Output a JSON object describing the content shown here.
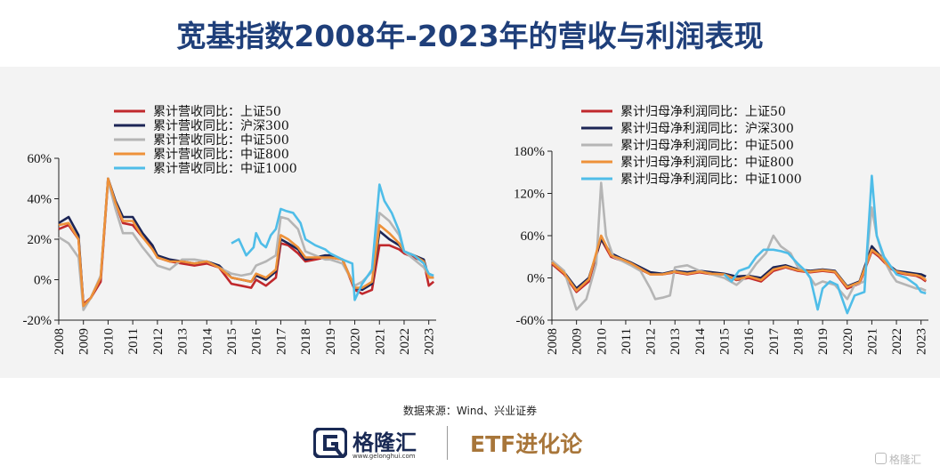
{
  "title": "宽基指数2008年-2023年的营收与利润表现",
  "source": "数据来源：Wind、兴业证券",
  "brand": {
    "name": "格隆汇",
    "url": "www.gelonghui.com",
    "subtitle": "ETF进化论",
    "watermark": "格隆汇"
  },
  "chart_data": [
    {
      "type": "line",
      "x_ticks": [
        "2008",
        "2009",
        "2010",
        "2011",
        "2012",
        "2013",
        "2014",
        "2015",
        "2016",
        "2017",
        "2018",
        "2019",
        "2020",
        "2021",
        "2022",
        "2023"
      ],
      "y_ticks": [
        "60%",
        "40%",
        "20%",
        "0%",
        "-20%"
      ],
      "ylim": [
        -20,
        60
      ],
      "xlim": [
        2008,
        2023.3
      ],
      "series": [
        {
          "name": "累计营收同比：上证50",
          "color": "#c0282c",
          "x": [
            2008,
            2008.4,
            2008.8,
            2009,
            2009.3,
            2009.7,
            2010,
            2010.3,
            2010.6,
            2011,
            2011.4,
            2011.8,
            2012,
            2012.5,
            2013,
            2013.5,
            2014,
            2014.5,
            2015,
            2015.4,
            2015.8,
            2016,
            2016.4,
            2016.8,
            2017,
            2017.3,
            2017.7,
            2018,
            2018.4,
            2018.8,
            2019,
            2019.5,
            2020,
            2020.3,
            2020.7,
            2021,
            2021.4,
            2021.8,
            2022,
            2022.4,
            2022.8,
            2023,
            2023.2
          ],
          "y": [
            25,
            27,
            20,
            -12,
            -9,
            -1,
            49,
            38,
            28,
            27,
            21,
            16,
            11,
            9,
            8,
            7,
            8,
            6,
            -2,
            -3,
            -4,
            0,
            -3,
            1,
            18,
            17,
            13,
            9,
            10,
            11,
            11,
            10,
            -5,
            -7,
            -5,
            17,
            17,
            15,
            13,
            11,
            9,
            -3,
            -1
          ]
        },
        {
          "name": "累计营收同比：沪深300",
          "color": "#1c2556",
          "x": [
            2008,
            2008.4,
            2008.8,
            2009,
            2009.3,
            2009.7,
            2010,
            2010.3,
            2010.6,
            2011,
            2011.4,
            2011.8,
            2012,
            2012.5,
            2013,
            2013.5,
            2014,
            2014.5,
            2015,
            2015.4,
            2015.8,
            2016,
            2016.4,
            2016.8,
            2017,
            2017.3,
            2017.7,
            2018,
            2018.4,
            2018.8,
            2019,
            2019.5,
            2020,
            2020.3,
            2020.7,
            2021,
            2021.4,
            2021.8,
            2022,
            2022.4,
            2022.8,
            2023,
            2023.2
          ],
          "y": [
            28,
            31,
            22,
            -13,
            -9,
            1,
            50,
            39,
            31,
            31,
            23,
            17,
            12,
            10,
            9,
            8,
            9,
            7,
            1,
            0,
            -1,
            2,
            0,
            4,
            20,
            18,
            15,
            10,
            11,
            12,
            12,
            10,
            -4,
            -5,
            -2,
            24,
            20,
            17,
            14,
            12,
            10,
            1,
            1
          ]
        },
        {
          "name": "累计营收同比：中证500",
          "color": "#b5b5b5",
          "x": [
            2008,
            2008.4,
            2008.8,
            2009,
            2009.3,
            2009.7,
            2010,
            2010.3,
            2010.6,
            2011,
            2011.4,
            2011.8,
            2012,
            2012.5,
            2013,
            2013.5,
            2014,
            2014.5,
            2015,
            2015.4,
            2015.8,
            2016,
            2016.4,
            2016.8,
            2017,
            2017.3,
            2017.7,
            2018,
            2018.4,
            2018.8,
            2019,
            2019.5,
            2020,
            2020.3,
            2020.7,
            2021,
            2021.4,
            2021.8,
            2022,
            2022.4,
            2022.8,
            2023,
            2023.2
          ],
          "y": [
            21,
            18,
            11,
            -15,
            -9,
            2,
            49,
            35,
            23,
            23,
            16,
            10,
            7,
            5,
            10,
            10,
            9,
            6,
            3,
            2,
            3,
            7,
            9,
            12,
            31,
            30,
            25,
            14,
            12,
            10,
            10,
            8,
            -3,
            -1,
            4,
            33,
            29,
            22,
            14,
            10,
            6,
            2,
            1
          ]
        },
        {
          "name": "累计营收同比：中证800",
          "color": "#ee9139",
          "x": [
            2008,
            2008.4,
            2008.8,
            2009,
            2009.3,
            2009.7,
            2010,
            2010.3,
            2010.6,
            2011,
            2011.4,
            2011.8,
            2012,
            2012.5,
            2013,
            2013.5,
            2014,
            2014.5,
            2015,
            2015.4,
            2015.8,
            2016,
            2016.4,
            2016.8,
            2017,
            2017.3,
            2017.7,
            2018,
            2018.4,
            2018.8,
            2019,
            2019.5,
            2020,
            2020.3,
            2020.7,
            2021,
            2021.4,
            2021.8,
            2022,
            2022.4,
            2022.8,
            2023,
            2023.2
          ],
          "y": [
            27,
            28,
            20,
            -13,
            -9,
            1,
            50,
            38,
            29,
            29,
            21,
            15,
            11,
            9,
            9,
            8,
            9,
            6,
            1,
            0,
            -1,
            3,
            1,
            5,
            22,
            20,
            16,
            11,
            11,
            11,
            11,
            10,
            -4,
            -4,
            -1,
            27,
            23,
            18,
            14,
            12,
            9,
            1,
            1
          ]
        },
        {
          "name": "累计营收同比：中证1000",
          "color": "#4fbde8",
          "x": [
            2015,
            2015.3,
            2015.6,
            2015.9,
            2016,
            2016.2,
            2016.4,
            2016.6,
            2016.8,
            2017,
            2017.2,
            2017.5,
            2017.8,
            2018,
            2018.4,
            2018.8,
            2019,
            2019.5,
            2019.9,
            2020,
            2020.3,
            2020.7,
            2021,
            2021.2,
            2021.5,
            2021.8,
            2022,
            2022.4,
            2022.8,
            2023,
            2023.2
          ],
          "y": [
            18,
            20,
            12,
            16,
            23,
            18,
            16,
            22,
            25,
            35,
            34,
            33,
            28,
            20,
            17,
            15,
            13,
            10,
            8,
            -10,
            -2,
            5,
            47,
            39,
            33,
            24,
            14,
            12,
            8,
            3,
            2
          ]
        }
      ]
    },
    {
      "type": "line",
      "x_ticks": [
        "2008",
        "2009",
        "2010",
        "2011",
        "2012",
        "2013",
        "2014",
        "2015",
        "2016",
        "2017",
        "2018",
        "2019",
        "2020",
        "2021",
        "2022",
        "2023"
      ],
      "y_ticks": [
        "180%",
        "120%",
        "60%",
        "0%",
        "-60%"
      ],
      "ylim": [
        -60,
        180
      ],
      "xlim": [
        2008,
        2023.3
      ],
      "series": [
        {
          "name": "累计归母净利润同比：上证50",
          "color": "#c0282c",
          "x": [
            2008,
            2008.5,
            2009,
            2009.5,
            2010,
            2010.4,
            2010.8,
            2011.2,
            2011.6,
            2012,
            2012.5,
            2013,
            2013.5,
            2014,
            2014.5,
            2015,
            2015.5,
            2016,
            2016.5,
            2017,
            2017.5,
            2018,
            2018.5,
            2019,
            2019.5,
            2020,
            2020.5,
            2021,
            2021.3,
            2021.7,
            2022,
            2022.4,
            2022.8,
            2023,
            2023.2
          ],
          "y": [
            20,
            5,
            -20,
            -5,
            55,
            30,
            25,
            20,
            12,
            5,
            5,
            8,
            5,
            8,
            5,
            5,
            -3,
            0,
            -5,
            10,
            15,
            10,
            8,
            10,
            8,
            -15,
            -8,
            38,
            30,
            15,
            8,
            5,
            3,
            0,
            -5
          ]
        },
        {
          "name": "累计归母净利润同比：沪深300",
          "color": "#1c2556",
          "x": [
            2008,
            2008.5,
            2009,
            2009.5,
            2010,
            2010.4,
            2010.8,
            2011.2,
            2011.6,
            2012,
            2012.5,
            2013,
            2013.5,
            2014,
            2014.5,
            2015,
            2015.5,
            2016,
            2016.5,
            2017,
            2017.5,
            2018,
            2018.5,
            2019,
            2019.5,
            2020,
            2020.5,
            2021,
            2021.3,
            2021.7,
            2022,
            2022.4,
            2022.8,
            2023,
            2023.2
          ],
          "y": [
            22,
            8,
            -15,
            0,
            55,
            35,
            28,
            22,
            15,
            8,
            6,
            10,
            8,
            10,
            8,
            6,
            2,
            3,
            0,
            15,
            18,
            12,
            10,
            12,
            10,
            -12,
            -5,
            45,
            33,
            18,
            10,
            8,
            6,
            5,
            2
          ]
        },
        {
          "name": "累计归母净利润同比：中证500",
          "color": "#b5b5b5",
          "x": [
            2008,
            2008.5,
            2009,
            2009.4,
            2009.8,
            2010,
            2010.2,
            2010.5,
            2010.8,
            2011.2,
            2011.6,
            2012,
            2012.2,
            2012.5,
            2012.8,
            2013,
            2013.5,
            2014,
            2014.5,
            2015,
            2015.5,
            2016,
            2016.3,
            2016.7,
            2017,
            2017.3,
            2017.7,
            2018,
            2018.3,
            2018.7,
            2019,
            2019.5,
            2020,
            2020.3,
            2020.7,
            2021,
            2021.2,
            2021.5,
            2021.8,
            2022,
            2022.4,
            2022.8,
            2023,
            2023.2
          ],
          "y": [
            25,
            10,
            -45,
            -30,
            20,
            135,
            60,
            30,
            25,
            18,
            10,
            -15,
            -30,
            -28,
            -25,
            15,
            18,
            10,
            5,
            0,
            -10,
            5,
            20,
            35,
            60,
            45,
            35,
            15,
            10,
            -10,
            -5,
            -10,
            -30,
            -10,
            -5,
            100,
            60,
            25,
            5,
            -5,
            -10,
            -15,
            -15,
            -18
          ]
        },
        {
          "name": "累计归母净利润同比：中证800",
          "color": "#ee9139",
          "x": [
            2008,
            2008.5,
            2009,
            2009.5,
            2010,
            2010.4,
            2010.8,
            2011.2,
            2011.6,
            2012,
            2012.5,
            2013,
            2013.5,
            2014,
            2014.5,
            2015,
            2015.5,
            2016,
            2016.5,
            2017,
            2017.5,
            2018,
            2018.5,
            2019,
            2019.5,
            2020,
            2020.5,
            2021,
            2021.3,
            2021.7,
            2022,
            2022.4,
            2022.8,
            2023,
            2023.2
          ],
          "y": [
            22,
            7,
            -18,
            -2,
            60,
            32,
            27,
            21,
            13,
            5,
            5,
            9,
            6,
            9,
            6,
            5,
            -2,
            2,
            -3,
            12,
            16,
            11,
            9,
            11,
            9,
            -13,
            -6,
            40,
            32,
            16,
            9,
            6,
            4,
            2,
            -3
          ]
        },
        {
          "name": "累计归母净利润同比：中证1000",
          "color": "#4fbde8",
          "x": [
            2015,
            2015.3,
            2015.6,
            2016,
            2016.3,
            2016.6,
            2017,
            2017.3,
            2017.6,
            2018,
            2018.3,
            2018.5,
            2018.8,
            2019,
            2019.3,
            2019.6,
            2020,
            2020.3,
            2020.7,
            2021,
            2021.2,
            2021.5,
            2021.8,
            2022,
            2022.4,
            2022.8,
            2023,
            2023.2
          ],
          "y": [
            5,
            -5,
            10,
            15,
            30,
            40,
            40,
            38,
            35,
            20,
            10,
            0,
            -45,
            -15,
            -5,
            -10,
            -50,
            -25,
            -20,
            145,
            60,
            30,
            15,
            5,
            0,
            -10,
            -20,
            -22
          ]
        }
      ]
    }
  ]
}
